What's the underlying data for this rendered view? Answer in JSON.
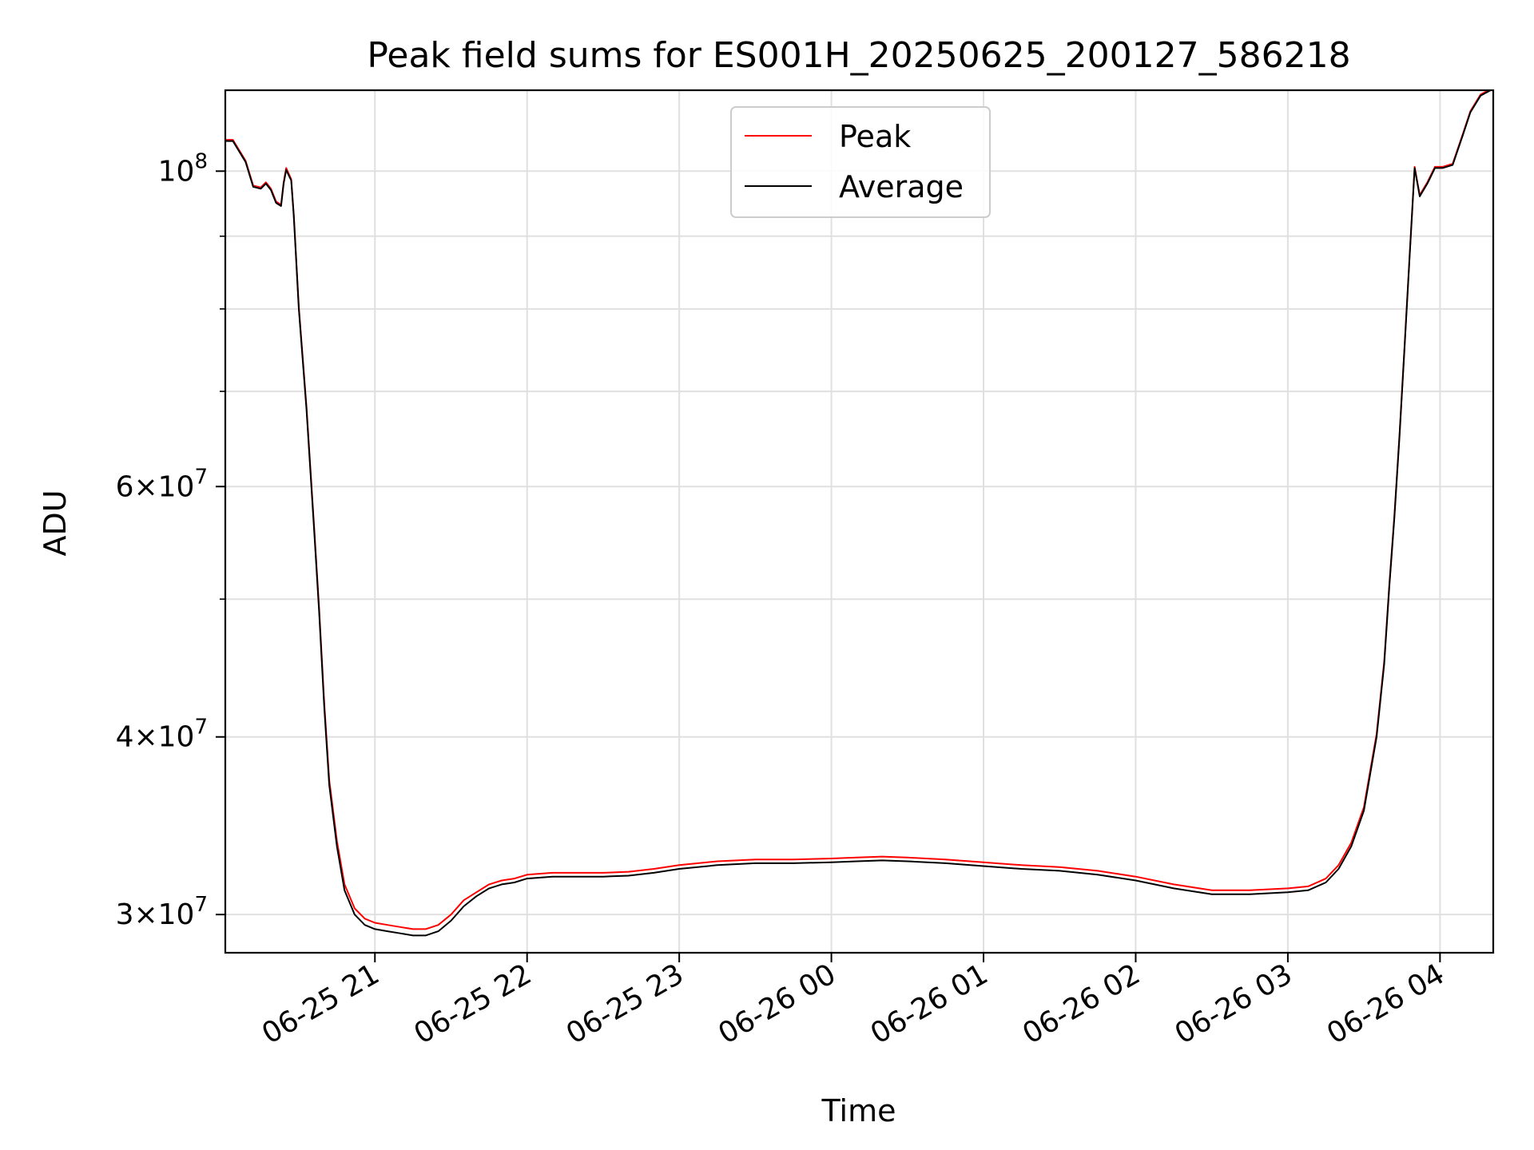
{
  "chart_data": {
    "type": "line",
    "title": "Peak field sums for ES001H_20250625_200127_586218",
    "xlabel": "Time",
    "ylabel": "ADU",
    "yscale": "log",
    "xlim": [
      "2025-06-25 20:01",
      "2025-06-26 04:21"
    ],
    "ylim": [
      28200000,
      114000000
    ],
    "grid": true,
    "legend": {
      "placement": "upper center",
      "entries": [
        "Peak",
        "Average"
      ]
    },
    "colors": {
      "Peak": "#ff0000",
      "Average": "#000000",
      "grid": "#e0e0e0"
    },
    "x_ticks": [
      {
        "time": "2025-06-25 21:00",
        "label": "06-25 21"
      },
      {
        "time": "2025-06-25 22:00",
        "label": "06-25 22"
      },
      {
        "time": "2025-06-25 23:00",
        "label": "06-25 23"
      },
      {
        "time": "2025-06-26 00:00",
        "label": "06-26 00"
      },
      {
        "time": "2025-06-26 01:00",
        "label": "06-26 01"
      },
      {
        "time": "2025-06-26 02:00",
        "label": "06-26 02"
      },
      {
        "time": "2025-06-26 03:00",
        "label": "06-26 03"
      },
      {
        "time": "2025-06-26 04:00",
        "label": "06-26 04"
      }
    ],
    "y_major_ticks": [
      {
        "value": 30000000,
        "mant": "3",
        "exp": "7"
      },
      {
        "value": 40000000,
        "mant": "4",
        "exp": "7"
      },
      {
        "value": 60000000,
        "mant": "6",
        "exp": "7"
      },
      {
        "value": 100000000,
        "mant": "",
        "exp": "8"
      }
    ],
    "y_minor_values": [
      50000000,
      70000000,
      80000000,
      90000000
    ],
    "series": [
      {
        "name": "Average",
        "x": [
          "2025-06-25 20:01",
          "2025-06-25 20:04",
          "2025-06-25 20:09",
          "2025-06-25 20:12",
          "2025-06-25 20:15",
          "2025-06-25 20:17",
          "2025-06-25 20:19",
          "2025-06-25 20:21",
          "2025-06-25 20:23",
          "2025-06-25 20:24",
          "2025-06-25 20:25",
          "2025-06-25 20:27",
          "2025-06-25 20:28",
          "2025-06-25 20:30",
          "2025-06-25 20:33",
          "2025-06-25 20:36",
          "2025-06-25 20:38",
          "2025-06-25 20:40",
          "2025-06-25 20:42",
          "2025-06-25 20:45",
          "2025-06-25 20:48",
          "2025-06-25 20:52",
          "2025-06-25 20:56",
          "2025-06-25 21:00",
          "2025-06-25 21:05",
          "2025-06-25 21:10",
          "2025-06-25 21:15",
          "2025-06-25 21:20",
          "2025-06-25 21:25",
          "2025-06-25 21:30",
          "2025-06-25 21:35",
          "2025-06-25 21:40",
          "2025-06-25 21:45",
          "2025-06-25 21:50",
          "2025-06-25 21:55",
          "2025-06-25 22:00",
          "2025-06-25 22:10",
          "2025-06-25 22:20",
          "2025-06-25 22:30",
          "2025-06-25 22:40",
          "2025-06-25 22:50",
          "2025-06-25 23:00",
          "2025-06-25 23:15",
          "2025-06-25 23:30",
          "2025-06-25 23:45",
          "2025-06-26 00:00",
          "2025-06-26 00:10",
          "2025-06-26 00:20",
          "2025-06-26 00:30",
          "2025-06-26 00:45",
          "2025-06-26 01:00",
          "2025-06-26 01:15",
          "2025-06-26 01:30",
          "2025-06-26 01:45",
          "2025-06-26 02:00",
          "2025-06-26 02:15",
          "2025-06-26 02:30",
          "2025-06-26 02:45",
          "2025-06-26 03:00",
          "2025-06-26 03:08",
          "2025-06-26 03:15",
          "2025-06-26 03:20",
          "2025-06-26 03:25",
          "2025-06-26 03:30",
          "2025-06-26 03:35",
          "2025-06-26 03:38",
          "2025-06-26 03:40",
          "2025-06-26 03:42",
          "2025-06-26 03:44",
          "2025-06-26 03:46",
          "2025-06-26 03:48",
          "2025-06-26 03:50",
          "2025-06-26 03:52",
          "2025-06-26 03:55",
          "2025-06-26 03:58",
          "2025-06-26 04:01",
          "2025-06-26 04:05",
          "2025-06-26 04:09",
          "2025-06-26 04:12",
          "2025-06-26 04:16",
          "2025-06-26 04:20"
        ],
        "y": [
          105000000,
          105000000,
          101500000,
          97500000,
          97200000,
          98000000,
          97000000,
          95000000,
          94500000,
          98000000,
          100200000,
          98500000,
          93000000,
          80000000,
          68000000,
          56000000,
          49000000,
          42000000,
          37000000,
          33500000,
          31200000,
          30000000,
          29500000,
          29300000,
          29200000,
          29100000,
          29000000,
          29000000,
          29200000,
          29700000,
          30400000,
          30900000,
          31300000,
          31500000,
          31600000,
          31800000,
          31900000,
          31900000,
          31900000,
          31950000,
          32100000,
          32300000,
          32500000,
          32600000,
          32600000,
          32650000,
          32700000,
          32750000,
          32700000,
          32600000,
          32450000,
          32300000,
          32200000,
          32000000,
          31700000,
          31300000,
          31000000,
          31000000,
          31100000,
          31200000,
          31600000,
          32300000,
          33500000,
          35500000,
          40000000,
          45000000,
          51000000,
          57000000,
          65000000,
          75000000,
          87000000,
          100500000,
          96000000,
          98000000,
          100500000,
          100500000,
          101000000,
          106000000,
          110000000,
          113000000,
          114000000
        ]
      },
      {
        "name": "Peak",
        "x": [
          "2025-06-25 20:01",
          "2025-06-25 20:04",
          "2025-06-25 20:09",
          "2025-06-25 20:12",
          "2025-06-25 20:15",
          "2025-06-25 20:17",
          "2025-06-25 20:19",
          "2025-06-25 20:21",
          "2025-06-25 20:23",
          "2025-06-25 20:24",
          "2025-06-25 20:25",
          "2025-06-25 20:27",
          "2025-06-25 20:28",
          "2025-06-25 20:30",
          "2025-06-25 20:33",
          "2025-06-25 20:36",
          "2025-06-25 20:38",
          "2025-06-25 20:40",
          "2025-06-25 20:42",
          "2025-06-25 20:45",
          "2025-06-25 20:48",
          "2025-06-25 20:52",
          "2025-06-25 20:56",
          "2025-06-25 21:00",
          "2025-06-25 21:05",
          "2025-06-25 21:10",
          "2025-06-25 21:15",
          "2025-06-25 21:20",
          "2025-06-25 21:25",
          "2025-06-25 21:30",
          "2025-06-25 21:35",
          "2025-06-25 21:40",
          "2025-06-25 21:45",
          "2025-06-25 21:50",
          "2025-06-25 21:55",
          "2025-06-25 22:00",
          "2025-06-25 22:10",
          "2025-06-25 22:20",
          "2025-06-25 22:30",
          "2025-06-25 22:40",
          "2025-06-25 22:50",
          "2025-06-25 23:00",
          "2025-06-25 23:15",
          "2025-06-25 23:30",
          "2025-06-25 23:45",
          "2025-06-26 00:00",
          "2025-06-26 00:10",
          "2025-06-26 00:20",
          "2025-06-26 00:30",
          "2025-06-26 00:45",
          "2025-06-26 01:00",
          "2025-06-26 01:15",
          "2025-06-26 01:30",
          "2025-06-26 01:45",
          "2025-06-26 02:00",
          "2025-06-26 02:15",
          "2025-06-26 02:30",
          "2025-06-26 02:45",
          "2025-06-26 03:00",
          "2025-06-26 03:08",
          "2025-06-26 03:15",
          "2025-06-26 03:20",
          "2025-06-26 03:25",
          "2025-06-26 03:30",
          "2025-06-26 03:35",
          "2025-06-26 03:38",
          "2025-06-26 03:40",
          "2025-06-26 03:42",
          "2025-06-26 03:44",
          "2025-06-26 03:46",
          "2025-06-26 03:48",
          "2025-06-26 03:50",
          "2025-06-26 03:52",
          "2025-06-26 03:55",
          "2025-06-26 03:58",
          "2025-06-26 04:01",
          "2025-06-26 04:05",
          "2025-06-26 04:09",
          "2025-06-26 04:12",
          "2025-06-26 04:16",
          "2025-06-26 04:20"
        ],
        "y": [
          105200000,
          105200000,
          101700000,
          97700000,
          97400000,
          98200000,
          97200000,
          95200000,
          94700000,
          98200000,
          100500000,
          98700000,
          93200000,
          80300000,
          68300000,
          56300000,
          49300000,
          42300000,
          37300000,
          33800000,
          31500000,
          30300000,
          29800000,
          29600000,
          29500000,
          29400000,
          29300000,
          29300000,
          29500000,
          30000000,
          30700000,
          31100000,
          31500000,
          31700000,
          31800000,
          32000000,
          32100000,
          32100000,
          32100000,
          32150000,
          32300000,
          32500000,
          32700000,
          32800000,
          32800000,
          32850000,
          32900000,
          32950000,
          32900000,
          32800000,
          32650000,
          32500000,
          32400000,
          32200000,
          31900000,
          31500000,
          31200000,
          31200000,
          31300000,
          31400000,
          31800000,
          32500000,
          33700000,
          35700000,
          40200000,
          45200000,
          51200000,
          57200000,
          65200000,
          75200000,
          87200000,
          100700000,
          96200000,
          98200000,
          100700000,
          100700000,
          101200000,
          106200000,
          110200000,
          113200000,
          114200000
        ]
      }
    ]
  }
}
